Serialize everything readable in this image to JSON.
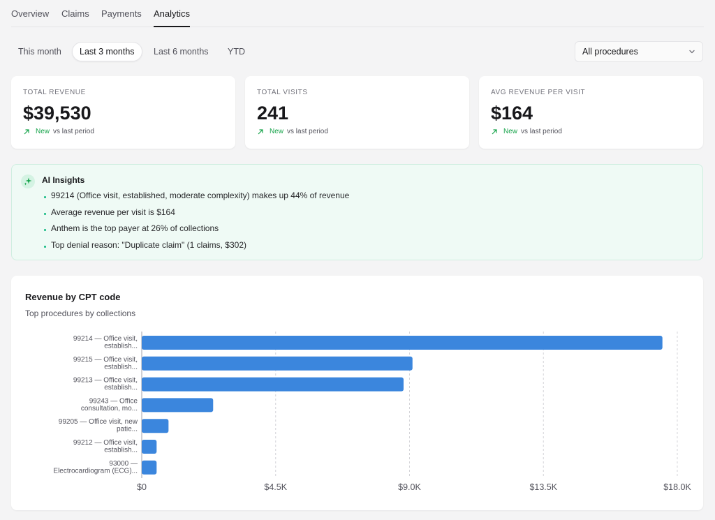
{
  "tabs": [
    {
      "label": "Overview",
      "active": false
    },
    {
      "label": "Claims",
      "active": false
    },
    {
      "label": "Payments",
      "active": false
    },
    {
      "label": "Analytics",
      "active": true
    }
  ],
  "ranges": [
    {
      "label": "This month",
      "active": false
    },
    {
      "label": "Last 3 months",
      "active": true
    },
    {
      "label": "Last 6 months",
      "active": false
    },
    {
      "label": "YTD",
      "active": false
    }
  ],
  "procedure_filter": {
    "value": "All procedures"
  },
  "stats": [
    {
      "label": "TOTAL REVENUE",
      "value": "$39,530",
      "delta": "New",
      "delta_suffix": "vs last period"
    },
    {
      "label": "TOTAL VISITS",
      "value": "241",
      "delta": "New",
      "delta_suffix": "vs last period"
    },
    {
      "label": "AVG REVENUE PER VISIT",
      "value": "$164",
      "delta": "New",
      "delta_suffix": "vs last period"
    }
  ],
  "insights": {
    "title": "AI Insights",
    "items": [
      "99214 (Office visit, established, moderate complexity) makes up 44% of revenue",
      "Average revenue per visit is $164",
      "Anthem is the top payer at 26% of collections",
      "Top denial reason: \"Duplicate claim\" (1 claims, $302)"
    ]
  },
  "colors": {
    "bar": "#3b86dd",
    "accent_green": "#16a34a"
  },
  "chart_data": {
    "type": "bar",
    "orientation": "horizontal",
    "title": "Revenue by CPT code",
    "subtitle": "Top procedures by collections",
    "categories": [
      [
        "99214 — Office visit,",
        "establish..."
      ],
      [
        "99215 — Office visit,",
        "establish..."
      ],
      [
        "99213 — Office visit,",
        "establish..."
      ],
      [
        "99243 — Office",
        "consultation, mo..."
      ],
      [
        "99205 — Office visit, new",
        "patie..."
      ],
      [
        "99212 — Office visit,",
        "establish..."
      ],
      [
        "93000 —",
        "Electrocardiogram (ECG)..."
      ]
    ],
    "values": [
      17500,
      9100,
      8800,
      2400,
      900,
      500,
      500
    ],
    "xlim": [
      0,
      18000
    ],
    "xticks": [
      {
        "value": 0,
        "label": "$0"
      },
      {
        "value": 4500,
        "label": "$4.5K"
      },
      {
        "value": 9000,
        "label": "$9.0K"
      },
      {
        "value": 13500,
        "label": "$13.5K"
      },
      {
        "value": 18000,
        "label": "$18.0K"
      }
    ],
    "grid": true
  }
}
